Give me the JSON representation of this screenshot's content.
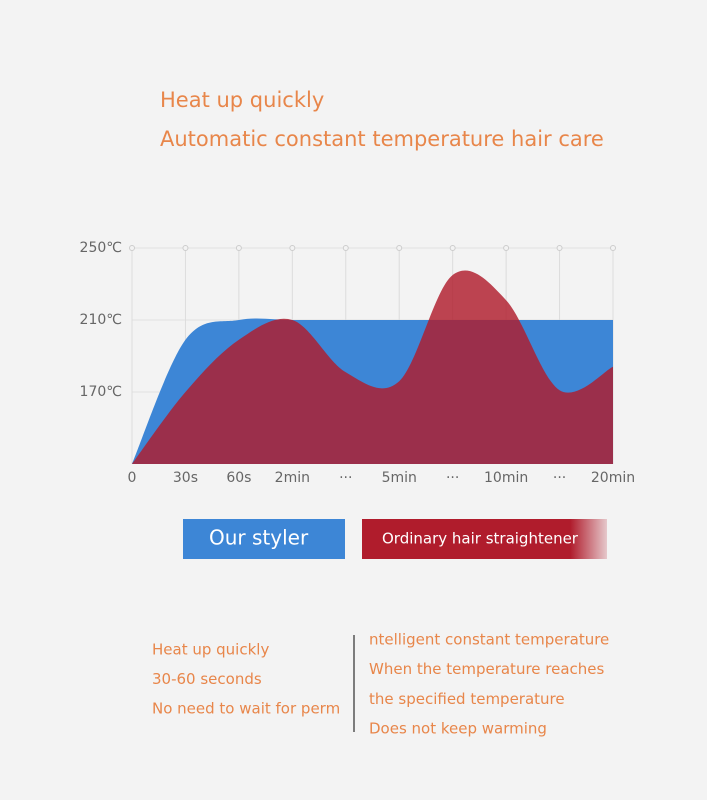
{
  "chart_data": {
    "type": "area",
    "title": "Heat up quickly",
    "subtitle": "Automatic constant temperature hair care",
    "categories": [
      "0",
      "30s",
      "60s",
      "2min",
      "···",
      "5min",
      "···",
      "10min",
      "···",
      "20min"
    ],
    "series": [
      {
        "name": "Our styler",
        "color": "#3d86d6",
        "values": [
          130,
          199,
          210,
          210,
          210,
          210,
          210,
          210,
          210,
          210
        ]
      },
      {
        "name": "Ordinary hair straightener",
        "color": "#b01c2c",
        "values": [
          130,
          170,
          199,
          210,
          181,
          176,
          235,
          221,
          171,
          184
        ]
      }
    ],
    "ylim": [
      130,
      250
    ],
    "yticks": [
      {
        "value": 170,
        "label": "170℃"
      },
      {
        "value": 210,
        "label": "210℃"
      },
      {
        "value": 250,
        "label": "250℃"
      }
    ],
    "grid": true
  },
  "notes": {
    "left": [
      "Heat up quickly",
      "30-60 seconds",
      "No need to wait for perm"
    ],
    "right": [
      "ntelligent constant temperature",
      "When the temperature reaches",
      "the specified temperature",
      "Does not keep warming"
    ]
  }
}
